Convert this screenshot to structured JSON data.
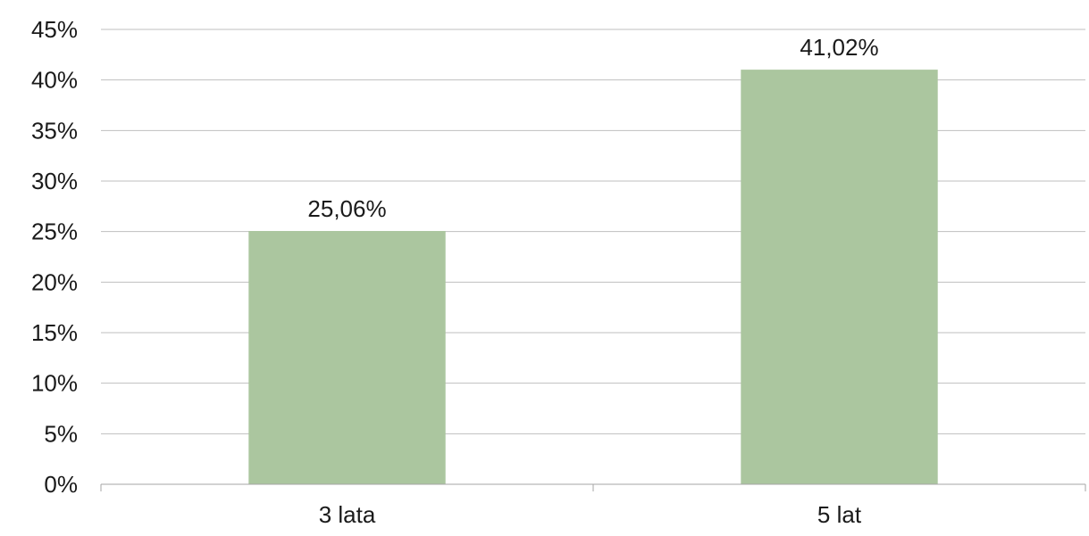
{
  "chart_data": {
    "type": "bar",
    "categories": [
      "3 lata",
      "5 lat"
    ],
    "values": [
      25.06,
      41.02
    ],
    "data_labels": [
      "25,06%",
      "41,02%"
    ],
    "ylim": [
      0,
      45
    ],
    "y_ticks": [
      0,
      5,
      10,
      15,
      20,
      25,
      30,
      35,
      40,
      45
    ],
    "y_tick_labels": [
      "0%",
      "5%",
      "10%",
      "15%",
      "20%",
      "25%",
      "30%",
      "35%",
      "40%",
      "45%"
    ],
    "grid": true,
    "legend": "none",
    "bar_color": "#abc69f",
    "title": "",
    "xlabel": "",
    "ylabel": ""
  }
}
